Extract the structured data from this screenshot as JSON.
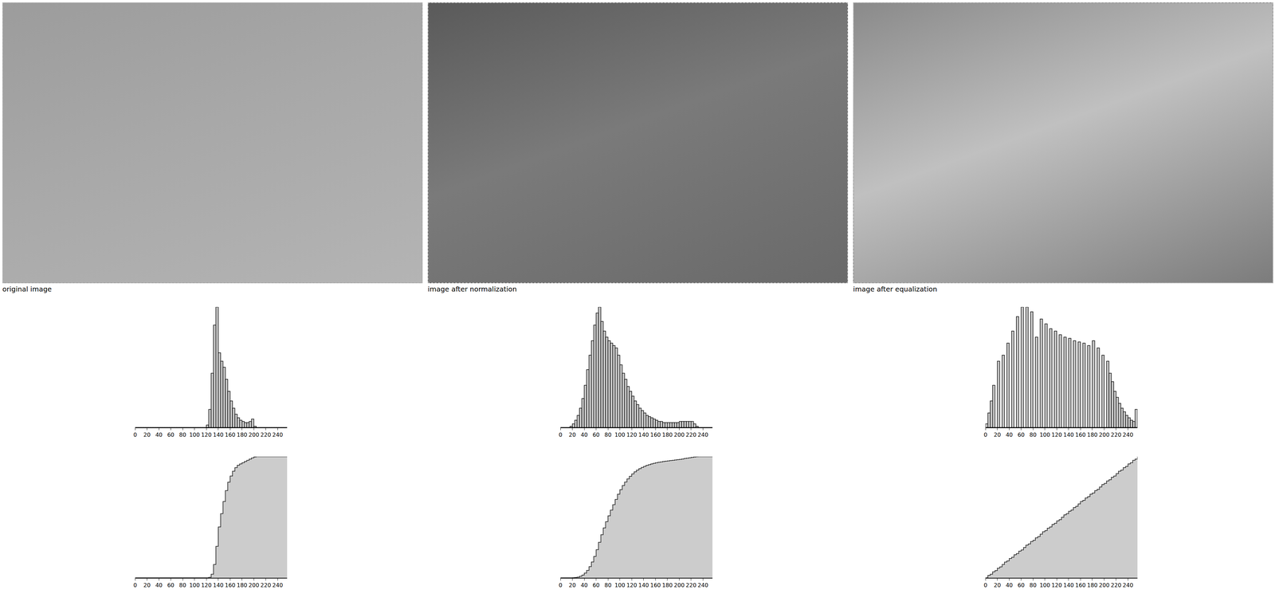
{
  "images": [
    {
      "caption": "original image"
    },
    {
      "caption": "image after normalization"
    },
    {
      "caption": "image after equalization"
    }
  ],
  "chart_data": [
    {
      "type": "histogram",
      "bins": [
        0,
        4,
        8,
        12,
        16,
        20,
        24,
        28,
        32,
        36,
        40,
        44,
        48,
        52,
        56,
        60,
        64,
        68,
        72,
        76,
        80,
        84,
        88,
        92,
        96,
        100,
        104,
        108,
        112,
        116,
        120,
        124,
        128,
        132,
        136,
        140,
        144,
        148,
        152,
        156,
        160,
        164,
        168,
        172,
        176,
        180,
        184,
        188,
        192,
        196,
        200,
        204,
        208,
        212,
        216,
        220,
        224,
        228,
        232,
        236,
        240,
        244,
        248,
        252,
        256
      ],
      "counts": [
        0,
        0,
        0,
        0,
        0,
        0,
        0,
        0,
        0,
        0,
        0,
        0,
        0,
        0,
        0,
        0,
        0,
        0,
        0,
        0,
        0,
        0,
        0,
        0,
        0,
        0,
        0,
        0,
        0,
        0,
        2,
        15,
        45,
        85,
        100,
        62,
        55,
        50,
        40,
        30,
        22,
        16,
        11,
        8,
        6,
        5,
        4,
        4,
        5,
        7,
        1,
        0,
        0,
        0,
        0,
        0,
        0,
        0,
        0,
        0,
        0,
        0,
        0,
        0
      ],
      "xlim": [
        0,
        256
      ],
      "ylim": [
        0,
        100
      ],
      "xticks": [
        0,
        20,
        40,
        60,
        80,
        100,
        120,
        140,
        160,
        180,
        200,
        220,
        240
      ],
      "tick_labels": "x",
      "color": "#cccccc"
    },
    {
      "type": "histogram",
      "bins": [
        0,
        4,
        8,
        12,
        16,
        20,
        24,
        28,
        32,
        36,
        40,
        44,
        48,
        52,
        56,
        60,
        64,
        68,
        72,
        76,
        80,
        84,
        88,
        92,
        96,
        100,
        104,
        108,
        112,
        116,
        120,
        124,
        128,
        132,
        136,
        140,
        144,
        148,
        152,
        156,
        160,
        164,
        168,
        172,
        176,
        180,
        184,
        188,
        192,
        196,
        200,
        204,
        208,
        212,
        216,
        220,
        224,
        228,
        232,
        236,
        240,
        244,
        248,
        252,
        256
      ],
      "counts": [
        0,
        0,
        0,
        0,
        1,
        3,
        6,
        10,
        16,
        24,
        35,
        48,
        60,
        72,
        85,
        95,
        100,
        88,
        80,
        75,
        72,
        70,
        68,
        66,
        60,
        52,
        45,
        40,
        34,
        30,
        26,
        22,
        19,
        16,
        14,
        12,
        10,
        9,
        8,
        7,
        6,
        5,
        5,
        4,
        4,
        4,
        4,
        4,
        4,
        4,
        5,
        5,
        5,
        5,
        5,
        5,
        3,
        1,
        0,
        0,
        0,
        0,
        0,
        0
      ],
      "xlim": [
        0,
        256
      ],
      "ylim": [
        0,
        100
      ],
      "xticks": [
        0,
        20,
        40,
        60,
        80,
        100,
        120,
        140,
        160,
        180,
        200,
        220,
        240
      ],
      "tick_labels": "x",
      "color": "#cccccc"
    },
    {
      "type": "histogram",
      "bins": [
        0,
        4,
        8,
        12,
        16,
        20,
        24,
        28,
        32,
        36,
        40,
        44,
        48,
        52,
        56,
        60,
        64,
        68,
        72,
        76,
        80,
        84,
        88,
        92,
        96,
        100,
        104,
        108,
        112,
        116,
        120,
        124,
        128,
        132,
        136,
        140,
        144,
        148,
        152,
        156,
        160,
        164,
        168,
        172,
        176,
        180,
        184,
        188,
        192,
        196,
        200,
        204,
        208,
        212,
        216,
        220,
        224,
        228,
        232,
        236,
        240,
        244,
        248,
        252,
        256
      ],
      "counts": [
        3,
        12,
        22,
        35,
        0,
        55,
        0,
        60,
        0,
        70,
        0,
        80,
        0,
        92,
        0,
        100,
        0,
        100,
        0,
        96,
        0,
        75,
        0,
        90,
        0,
        86,
        0,
        82,
        0,
        80,
        0,
        77,
        0,
        75,
        0,
        74,
        0,
        72,
        0,
        71,
        0,
        70,
        0,
        68,
        0,
        72,
        0,
        66,
        0,
        60,
        0,
        55,
        45,
        38,
        30,
        25,
        20,
        16,
        13,
        10,
        8,
        6,
        5,
        15
      ],
      "xlim": [
        0,
        256
      ],
      "ylim": [
        0,
        100
      ],
      "xticks": [
        0,
        20,
        40,
        60,
        80,
        100,
        120,
        140,
        160,
        180,
        200,
        220,
        240
      ],
      "tick_labels": "x",
      "color": "#cccccc"
    },
    {
      "type": "line",
      "x": [
        0,
        4,
        8,
        12,
        16,
        20,
        24,
        28,
        32,
        36,
        40,
        44,
        48,
        52,
        56,
        60,
        64,
        68,
        72,
        76,
        80,
        84,
        88,
        92,
        96,
        100,
        104,
        108,
        112,
        116,
        120,
        124,
        128,
        132,
        136,
        140,
        144,
        148,
        152,
        156,
        160,
        164,
        168,
        172,
        176,
        180,
        184,
        188,
        192,
        196,
        200,
        204,
        208,
        212,
        216,
        220,
        224,
        228,
        232,
        236,
        240,
        244,
        248,
        252,
        256
      ],
      "values": [
        0,
        0,
        0,
        0,
        0,
        0,
        0,
        0,
        0,
        0,
        0,
        0,
        0,
        0,
        0,
        0,
        0,
        0,
        0,
        0,
        0,
        0,
        0,
        0,
        0,
        0,
        0,
        0,
        0,
        0,
        0,
        0.004,
        0.03,
        0.11,
        0.26,
        0.42,
        0.53,
        0.63,
        0.72,
        0.79,
        0.84,
        0.88,
        0.91,
        0.93,
        0.94,
        0.95,
        0.96,
        0.97,
        0.98,
        0.99,
        0.998,
        1,
        1,
        1,
        1,
        1,
        1,
        1,
        1,
        1,
        1,
        1,
        1,
        1,
        1
      ],
      "xlim": [
        0,
        256
      ],
      "ylim": [
        0,
        1
      ],
      "xticks": [
        0,
        20,
        40,
        60,
        80,
        100,
        120,
        140,
        160,
        180,
        200,
        220,
        240
      ],
      "tick_labels": "x",
      "color": "#cccccc"
    },
    {
      "type": "line",
      "x": [
        0,
        4,
        8,
        12,
        16,
        20,
        24,
        28,
        32,
        36,
        40,
        44,
        48,
        52,
        56,
        60,
        64,
        68,
        72,
        76,
        80,
        84,
        88,
        92,
        96,
        100,
        104,
        108,
        112,
        116,
        120,
        124,
        128,
        132,
        136,
        140,
        144,
        148,
        152,
        156,
        160,
        164,
        168,
        172,
        176,
        180,
        184,
        188,
        192,
        196,
        200,
        204,
        208,
        212,
        216,
        220,
        224,
        228,
        232,
        236,
        240,
        244,
        248,
        252,
        256
      ],
      "values": [
        0,
        0,
        0,
        0,
        0,
        0.001,
        0.003,
        0.006,
        0.013,
        0.023,
        0.039,
        0.061,
        0.092,
        0.131,
        0.177,
        0.232,
        0.293,
        0.356,
        0.412,
        0.464,
        0.512,
        0.559,
        0.604,
        0.647,
        0.69,
        0.728,
        0.762,
        0.791,
        0.817,
        0.838,
        0.858,
        0.875,
        0.889,
        0.901,
        0.911,
        0.92,
        0.928,
        0.934,
        0.94,
        0.945,
        0.95,
        0.954,
        0.957,
        0.96,
        0.963,
        0.965,
        0.968,
        0.97,
        0.973,
        0.976,
        0.978,
        0.981,
        0.985,
        0.988,
        0.991,
        0.994,
        0.997,
        0.999,
        1,
        1,
        1,
        1,
        1,
        1,
        1
      ],
      "xlim": [
        0,
        256
      ],
      "ylim": [
        0,
        1
      ],
      "xticks": [
        0,
        20,
        40,
        60,
        80,
        100,
        120,
        140,
        160,
        180,
        200,
        220,
        240
      ],
      "tick_labels": "x",
      "color": "#cccccc"
    },
    {
      "type": "line",
      "x": [
        0,
        4,
        8,
        12,
        16,
        20,
        24,
        28,
        32,
        36,
        40,
        44,
        48,
        52,
        56,
        60,
        64,
        68,
        72,
        76,
        80,
        84,
        88,
        92,
        96,
        100,
        104,
        108,
        112,
        116,
        120,
        124,
        128,
        132,
        136,
        140,
        144,
        148,
        152,
        156,
        160,
        164,
        168,
        172,
        176,
        180,
        184,
        188,
        192,
        196,
        200,
        204,
        208,
        212,
        216,
        220,
        224,
        228,
        232,
        236,
        240,
        244,
        248,
        252,
        256
      ],
      "values": [
        0,
        0.02,
        0.03,
        0.05,
        0.06,
        0.08,
        0.09,
        0.11,
        0.13,
        0.14,
        0.16,
        0.17,
        0.19,
        0.2,
        0.22,
        0.23,
        0.25,
        0.27,
        0.28,
        0.3,
        0.31,
        0.33,
        0.34,
        0.36,
        0.38,
        0.39,
        0.41,
        0.42,
        0.44,
        0.45,
        0.47,
        0.48,
        0.5,
        0.52,
        0.53,
        0.55,
        0.56,
        0.58,
        0.59,
        0.61,
        0.63,
        0.64,
        0.66,
        0.67,
        0.69,
        0.7,
        0.72,
        0.73,
        0.75,
        0.77,
        0.78,
        0.8,
        0.81,
        0.83,
        0.84,
        0.86,
        0.88,
        0.89,
        0.91,
        0.92,
        0.94,
        0.95,
        0.97,
        0.98,
        1
      ],
      "xlim": [
        0,
        256
      ],
      "ylim": [
        0,
        1
      ],
      "xticks": [
        0,
        20,
        40,
        60,
        80,
        100,
        120,
        140,
        160,
        180,
        200,
        220,
        240
      ],
      "tick_labels": "x",
      "color": "#cccccc"
    }
  ]
}
